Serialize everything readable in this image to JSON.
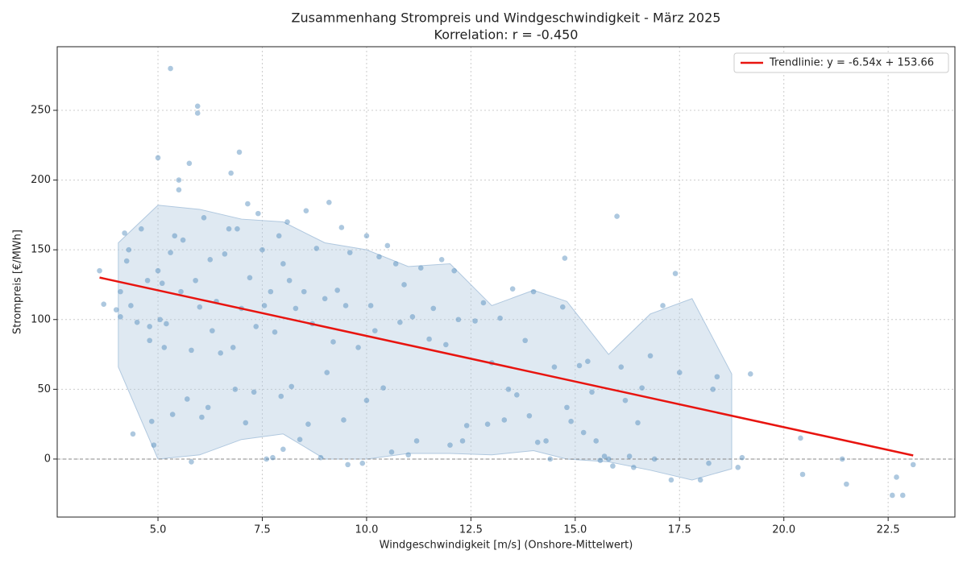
{
  "chart_data": {
    "type": "scatter",
    "title": "Zusammenhang Strompreis und Windgeschwindigkeit - März 2025",
    "subtitle": "Korrelation: r = -0.450",
    "x_label": "Windgeschwindigkeit [m/s] (Onshore-Mittelwert)",
    "y_label": "Strompreis [€/MWh]",
    "xlim": [
      2.585,
      24.1
    ],
    "ylim": [
      -41.6,
      295.6
    ],
    "xticks": [
      {
        "value": 5,
        "label": "5.0"
      },
      7.5,
      {
        "value": 10,
        "label": "10.0"
      },
      12.5,
      {
        "value": 15,
        "label": "15.0"
      },
      17.5,
      {
        "value": 20,
        "label": "20.0"
      },
      22.5
    ],
    "yticks": [
      0,
      50,
      100,
      150,
      200,
      250
    ],
    "grid": true,
    "legend": "upper right",
    "reference_line": 0,
    "band": {
      "color": "#b0c8df",
      "x": [
        4.05,
        5,
        6,
        7,
        8,
        9,
        10,
        11,
        12,
        13,
        14,
        14.8,
        15.8,
        16.8,
        17.8,
        18.75
      ],
      "upper": [
        155,
        182,
        179,
        172,
        170,
        155,
        150,
        138,
        140,
        110,
        121,
        113,
        75,
        104,
        115,
        61
      ],
      "lower": [
        66,
        0,
        3,
        14,
        18,
        0,
        0,
        4,
        4,
        3,
        6,
        0,
        -2,
        -8,
        -15,
        -7
      ]
    },
    "scatter": {
      "color": "#4a86b8",
      "x": [
        3.6,
        3.7,
        4.0,
        4.1,
        4.1,
        4.2,
        4.25,
        4.3,
        4.35,
        4.4,
        4.5,
        4.6,
        4.75,
        4.8,
        4.8,
        4.85,
        4.9,
        5.0,
        5.0,
        5.05,
        5.1,
        5.15,
        5.2,
        5.3,
        5.3,
        5.35,
        5.4,
        5.5,
        5.5,
        5.55,
        5.6,
        5.7,
        5.75,
        5.8,
        5.8,
        5.9,
        5.95,
        5.95,
        6.0,
        6.05,
        6.1,
        6.2,
        6.25,
        6.3,
        6.4,
        6.5,
        6.6,
        6.7,
        6.75,
        6.8,
        6.85,
        6.9,
        6.95,
        7.0,
        7.1,
        7.15,
        7.2,
        7.3,
        7.35,
        7.4,
        7.5,
        7.55,
        7.6,
        7.7,
        7.75,
        7.8,
        7.9,
        7.95,
        8.0,
        8.0,
        8.1,
        8.15,
        8.2,
        8.3,
        8.4,
        8.5,
        8.55,
        8.6,
        8.7,
        8.8,
        8.9,
        9.0,
        9.05,
        9.1,
        9.2,
        9.3,
        9.4,
        9.45,
        9.5,
        9.55,
        9.6,
        9.8,
        9.9,
        10.0,
        10.0,
        10.1,
        10.2,
        10.3,
        10.4,
        10.5,
        10.6,
        10.7,
        10.8,
        10.9,
        11.0,
        11.1,
        11.2,
        11.3,
        11.5,
        11.6,
        11.8,
        11.9,
        12.0,
        12.1,
        12.2,
        12.3,
        12.4,
        12.6,
        12.8,
        12.9,
        13.0,
        13.2,
        13.3,
        13.4,
        13.5,
        13.6,
        13.8,
        13.9,
        14.0,
        14.1,
        14.3,
        14.4,
        14.5,
        14.7,
        14.75,
        14.8,
        14.9,
        15.1,
        15.2,
        15.3,
        15.4,
        15.5,
        15.6,
        15.7,
        15.8,
        15.9,
        16.0,
        16.1,
        16.2,
        16.3,
        16.4,
        16.5,
        16.6,
        16.8,
        16.9,
        17.1,
        17.3,
        17.4,
        17.5,
        18.0,
        18.2,
        18.3,
        18.4,
        18.9,
        19.0,
        19.2,
        20.4,
        20.45,
        21.4,
        21.5,
        22.6,
        22.7,
        22.85,
        23.1
      ],
      "values": [
        135,
        111,
        107,
        120,
        102,
        162,
        142,
        150,
        110,
        18,
        98,
        165,
        128,
        95,
        85,
        27,
        10,
        216,
        135,
        100,
        126,
        80,
        97,
        280,
        148,
        32,
        160,
        200,
        193,
        120,
        157,
        43,
        212,
        78,
        -2,
        128,
        253,
        248,
        109,
        30,
        173,
        37,
        143,
        92,
        113,
        76,
        147,
        165,
        205,
        80,
        50,
        165,
        220,
        108,
        26,
        183,
        130,
        48,
        95,
        176,
        150,
        110,
        0,
        120,
        1,
        91,
        160,
        45,
        140,
        7,
        170,
        128,
        52,
        108,
        14,
        120,
        178,
        25,
        97,
        151,
        1,
        115,
        62,
        184,
        84,
        121,
        166,
        28,
        110,
        -4,
        148,
        80,
        -3,
        160,
        42,
        110,
        92,
        145,
        51,
        153,
        5,
        140,
        98,
        125,
        3,
        102,
        13,
        137,
        86,
        108,
        143,
        82,
        10,
        135,
        100,
        13,
        24,
        99,
        112,
        25,
        69,
        101,
        28,
        50,
        122,
        46,
        85,
        31,
        120,
        12,
        13,
        0,
        66,
        109,
        144,
        37,
        27,
        67,
        19,
        70,
        48,
        13,
        -1,
        2,
        0,
        -5,
        174,
        66,
        42,
        2,
        -6,
        26,
        51,
        74,
        0,
        110,
        -15,
        133,
        62,
        -15,
        -3,
        50,
        59,
        -6,
        1,
        61,
        15,
        -11,
        0,
        -18,
        -26,
        -13,
        -26,
        -4
      ]
    },
    "trend": {
      "name": "Trendlinie: y = -6.54x + 153.66",
      "color": "#e8140f",
      "x": [
        3.6,
        23.1
      ],
      "values": [
        130.12,
        2.59
      ]
    }
  }
}
